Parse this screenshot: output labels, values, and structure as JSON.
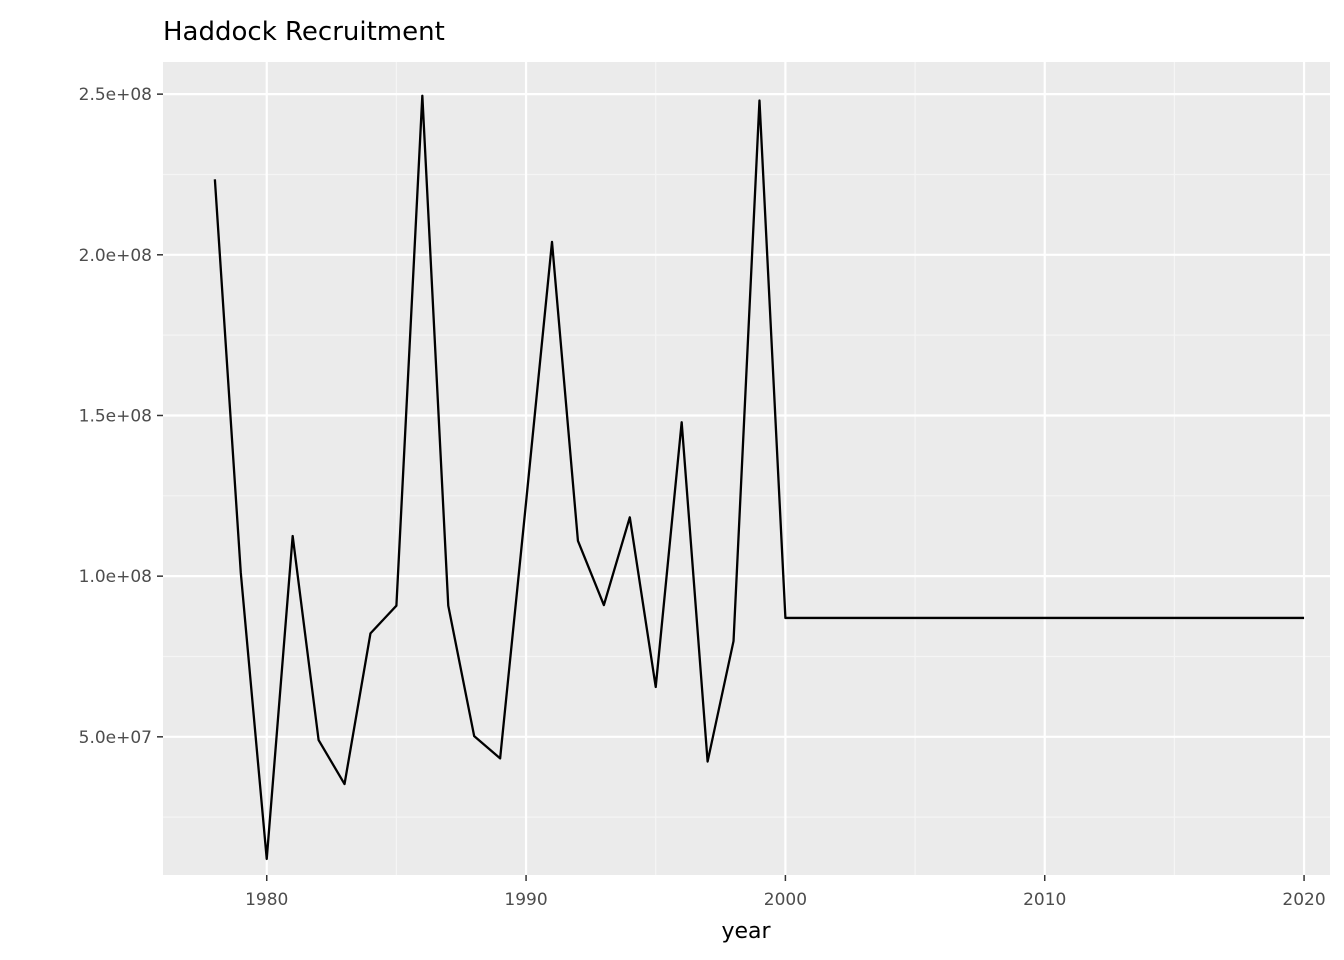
{
  "chart_data": {
    "type": "line",
    "title": "Haddock Recruitment",
    "xlabel": "year",
    "ylabel": "",
    "xlim": [
      1976,
      2021
    ],
    "ylim": [
      7000000,
      260000000
    ],
    "x_ticks": [
      1980,
      1990,
      2000,
      2010,
      2020
    ],
    "x_tick_labels": [
      "1980",
      "1990",
      "2000",
      "2010",
      "2020"
    ],
    "y_ticks": [
      50000000,
      100000000,
      150000000,
      200000000,
      250000000
    ],
    "y_tick_labels": [
      "5.0e+07",
      "1.0e+08",
      "1.5e+08",
      "2.0e+08",
      "2.5e+08"
    ],
    "grid": true,
    "legend": "none",
    "colors": {
      "panel_background": "#ebebeb",
      "grid_major": "#ffffff",
      "grid_minor": "#f5f5f5",
      "line": "#000000",
      "tick_mark": "#333333"
    },
    "series": [
      {
        "x": [
          1978,
          1979,
          1980,
          1981,
          1982,
          1983,
          1984,
          1985,
          1986,
          1987,
          1988,
          1989,
          1990,
          1991,
          1992,
          1993,
          1994,
          1995,
          1996,
          1997,
          1998,
          1999,
          2000,
          2001,
          2002,
          2003,
          2004,
          2005,
          2006,
          2007,
          2008,
          2009,
          2010,
          2011,
          2012,
          2013,
          2014,
          2015,
          2016,
          2017,
          2018,
          2019,
          2020
        ],
        "values": [
          223500000,
          101000000,
          12000000,
          112500000,
          49000000,
          35300000,
          82200000,
          90800000,
          249500000,
          90800000,
          50200000,
          43300000,
          123000000,
          204000000,
          111000000,
          91000000,
          118300000,
          65500000,
          147900000,
          42300000,
          79800000,
          248000000,
          87000000,
          87000000,
          87000000,
          87000000,
          87000000,
          87000000,
          87000000,
          87000000,
          87000000,
          87000000,
          87000000,
          87000000,
          87000000,
          87000000,
          87000000,
          87000000,
          87000000,
          87000000,
          87000000,
          87000000,
          87000000
        ]
      }
    ]
  }
}
